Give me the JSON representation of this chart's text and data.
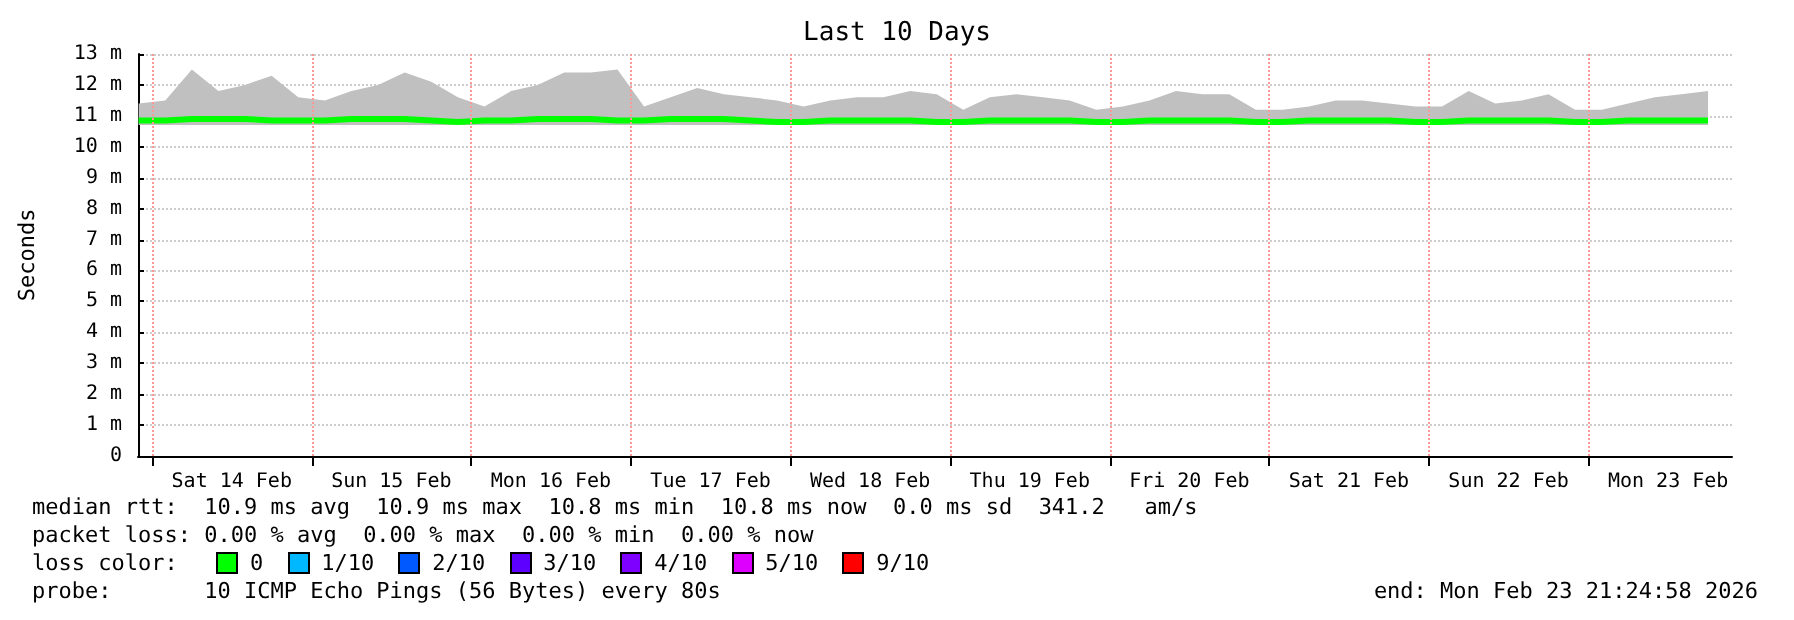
{
  "chart_data": {
    "type": "line",
    "title": "Last 10 Days",
    "ylabel": "Seconds",
    "x": [
      "2026-02-13T22:00",
      "2026-02-14T02:00",
      "2026-02-14T06:00",
      "2026-02-14T10:00",
      "2026-02-14T14:00",
      "2026-02-14T18:00",
      "2026-02-14T22:00",
      "2026-02-15T02:00",
      "2026-02-15T06:00",
      "2026-02-15T10:00",
      "2026-02-15T14:00",
      "2026-02-15T18:00",
      "2026-02-15T22:00",
      "2026-02-16T02:00",
      "2026-02-16T06:00",
      "2026-02-16T10:00",
      "2026-02-16T14:00",
      "2026-02-16T18:00",
      "2026-02-16T22:00",
      "2026-02-17T02:00",
      "2026-02-17T06:00",
      "2026-02-17T10:00",
      "2026-02-17T14:00",
      "2026-02-17T18:00",
      "2026-02-17T22:00",
      "2026-02-18T02:00",
      "2026-02-18T06:00",
      "2026-02-18T10:00",
      "2026-02-18T14:00",
      "2026-02-18T18:00",
      "2026-02-18T22:00",
      "2026-02-19T02:00",
      "2026-02-19T06:00",
      "2026-02-19T10:00",
      "2026-02-19T14:00",
      "2026-02-19T18:00",
      "2026-02-19T22:00",
      "2026-02-20T02:00",
      "2026-02-20T06:00",
      "2026-02-20T10:00",
      "2026-02-20T14:00",
      "2026-02-20T18:00",
      "2026-02-20T22:00",
      "2026-02-21T02:00",
      "2026-02-21T06:00",
      "2026-02-21T10:00",
      "2026-02-21T14:00",
      "2026-02-21T18:00",
      "2026-02-21T22:00",
      "2026-02-22T02:00",
      "2026-02-22T06:00",
      "2026-02-22T10:00",
      "2026-02-22T14:00",
      "2026-02-22T18:00",
      "2026-02-22T22:00",
      "2026-02-23T02:00",
      "2026-02-23T06:00",
      "2026-02-23T10:00",
      "2026-02-23T14:00",
      "2026-02-23T18:00"
    ],
    "series": [
      {
        "color": "#00ff00",
        "values": [
          10.85,
          10.85,
          10.9,
          10.9,
          10.9,
          10.85,
          10.85,
          10.85,
          10.9,
          10.9,
          10.9,
          10.85,
          10.8,
          10.85,
          10.85,
          10.9,
          10.9,
          10.9,
          10.85,
          10.85,
          10.9,
          10.9,
          10.9,
          10.85,
          10.8,
          10.8,
          10.85,
          10.85,
          10.85,
          10.85,
          10.8,
          10.8,
          10.85,
          10.85,
          10.85,
          10.85,
          10.8,
          10.8,
          10.85,
          10.85,
          10.85,
          10.85,
          10.8,
          10.8,
          10.85,
          10.85,
          10.85,
          10.85,
          10.8,
          10.8,
          10.85,
          10.85,
          10.85,
          10.85,
          10.8,
          10.8,
          10.85,
          10.85,
          10.85,
          10.85
        ],
        "lower": [
          10.7,
          10.7,
          10.7,
          10.7,
          10.7,
          10.7,
          10.7,
          10.7,
          10.7,
          10.7,
          10.7,
          10.7,
          10.7,
          10.7,
          10.7,
          10.7,
          10.7,
          10.7,
          10.7,
          10.7,
          10.7,
          10.7,
          10.7,
          10.7,
          10.7,
          10.7,
          10.7,
          10.7,
          10.7,
          10.7,
          10.7,
          10.7,
          10.7,
          10.7,
          10.7,
          10.7,
          10.7,
          10.7,
          10.7,
          10.7,
          10.7,
          10.7,
          10.7,
          10.7,
          10.7,
          10.7,
          10.7,
          10.7,
          10.7,
          10.7,
          10.7,
          10.7,
          10.7,
          10.7,
          10.7,
          10.7,
          10.7,
          10.7,
          10.7,
          10.7
        ],
        "upper": [
          11.4,
          11.5,
          12.5,
          11.8,
          12.0,
          12.3,
          11.6,
          11.5,
          11.8,
          12.0,
          12.4,
          12.1,
          11.6,
          11.3,
          11.8,
          12.0,
          12.4,
          12.4,
          12.5,
          11.3,
          11.6,
          11.9,
          11.7,
          11.6,
          11.5,
          11.3,
          11.5,
          11.6,
          11.6,
          11.8,
          11.7,
          11.2,
          11.6,
          11.7,
          11.6,
          11.5,
          11.2,
          11.3,
          11.5,
          11.8,
          11.7,
          11.7,
          11.2,
          11.2,
          11.3,
          11.5,
          11.5,
          11.4,
          11.3,
          11.3,
          11.8,
          11.4,
          11.5,
          11.7,
          11.2,
          11.2,
          11.4,
          11.6,
          11.7,
          11.8
        ]
      }
    ],
    "xlim": [
      "2026-02-13T21:54",
      "2026-02-23T21:36"
    ],
    "xticks": [
      {
        "value": "2026-02-14T00:00",
        "label": null
      },
      {
        "value": "2026-02-14T12:00",
        "label": "Sat 14 Feb"
      },
      {
        "value": "2026-02-15T00:00",
        "label": null
      },
      {
        "value": "2026-02-15T12:00",
        "label": "Sun 15 Feb"
      },
      {
        "value": "2026-02-16T00:00",
        "label": null
      },
      {
        "value": "2026-02-16T12:00",
        "label": "Mon 16 Feb"
      },
      {
        "value": "2026-02-17T00:00",
        "label": null
      },
      {
        "value": "2026-02-17T12:00",
        "label": "Tue 17 Feb"
      },
      {
        "value": "2026-02-18T00:00",
        "label": null
      },
      {
        "value": "2026-02-18T12:00",
        "label": "Wed 18 Feb"
      },
      {
        "value": "2026-02-19T00:00",
        "label": null
      },
      {
        "value": "2026-02-19T12:00",
        "label": "Thu 19 Feb"
      },
      {
        "value": "2026-02-20T00:00",
        "label": null
      },
      {
        "value": "2026-02-20T12:00",
        "label": "Fri 20 Feb"
      },
      {
        "value": "2026-02-21T00:00",
        "label": null
      },
      {
        "value": "2026-02-21T12:00",
        "label": "Sat 21 Feb"
      },
      {
        "value": "2026-02-22T00:00",
        "label": null
      },
      {
        "value": "2026-02-22T12:00",
        "label": "Sun 22 Feb"
      },
      {
        "value": "2026-02-23T00:00",
        "label": null
      },
      {
        "value": "2026-02-23T12:00",
        "label": "Mon 23 Feb"
      }
    ],
    "ylim": [
      0,
      13
    ],
    "yticks": [
      0,
      {
        "value": 1,
        "label": "1 m"
      },
      {
        "value": 2,
        "label": "2 m"
      },
      {
        "value": 3,
        "label": "3 m"
      },
      {
        "value": 4,
        "label": "4 m"
      },
      {
        "value": 5,
        "label": "5 m"
      },
      {
        "value": 6,
        "label": "6 m"
      },
      {
        "value": 7,
        "label": "7 m"
      },
      {
        "value": 8,
        "label": "8 m"
      },
      {
        "value": 9,
        "label": "9 m"
      },
      {
        "value": 10,
        "label": "10 m"
      },
      {
        "value": 11,
        "label": "11 m"
      },
      {
        "value": 12,
        "label": "12 m"
      },
      {
        "value": 13,
        "label": "13 m"
      }
    ],
    "grid": true,
    "marker": "none",
    "line_style": "solid",
    "annotations": [
      "median rtt:  10.9 ms avg  10.9 ms max  10.8 ms min  10.8 ms now  0.0 ms sd  341.2   am/s",
      "packet loss: 0.00 % avg  0.00 % max  0.00 % min  0.00 % now",
      "loss color:",
      "0",
      "1/10",
      "2/10",
      "3/10",
      "4/10",
      "5/10",
      "9/10",
      "probe:       10 ICMP Echo Pings (56 Bytes) every 80s",
      "end: Mon Feb 23 21:24:58 2026"
    ]
  }
}
